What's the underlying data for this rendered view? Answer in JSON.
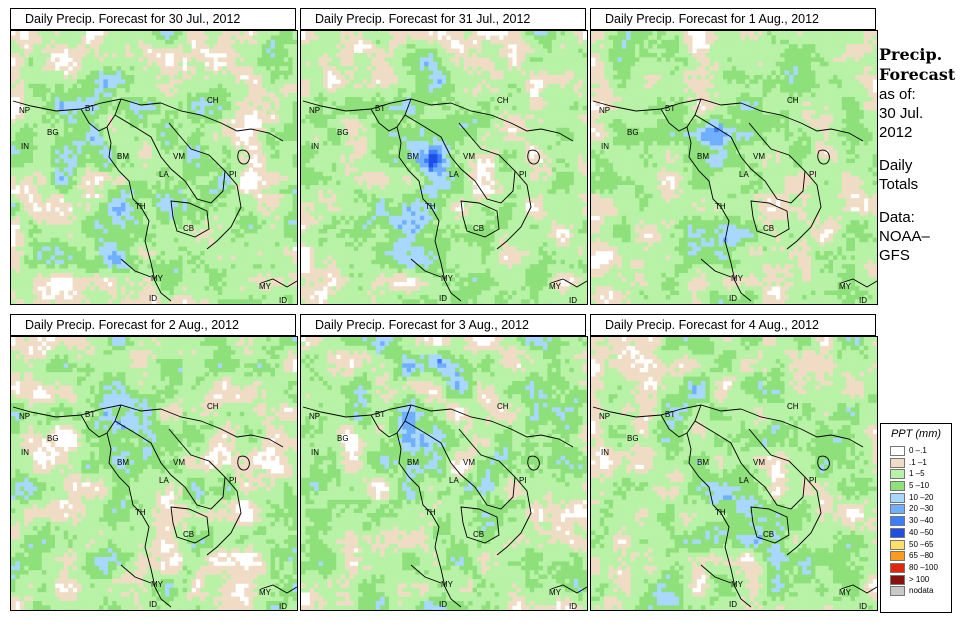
{
  "panels": [
    {
      "title": "Daily Precip. Forecast for  30 Jul., 2012",
      "seed": 11,
      "wet": 0.62
    },
    {
      "title": "Daily Precip. Forecast for  31 Jul., 2012",
      "seed": 27,
      "wet": 0.55
    },
    {
      "title": "Daily Precip. Forecast for  1 Aug., 2012",
      "seed": 43,
      "wet": 0.5
    },
    {
      "title": "Daily Precip. Forecast for  2 Aug., 2012",
      "seed": 59,
      "wet": 0.58
    },
    {
      "title": "Daily Precip. Forecast for  3 Aug., 2012",
      "seed": 71,
      "wet": 0.66
    },
    {
      "title": "Daily Precip. Forecast for  4 Aug., 2012",
      "seed": 97,
      "wet": 0.56
    }
  ],
  "map_labels": [
    "NP",
    "BT",
    "BG",
    "IN",
    "CH",
    "BM",
    "VM",
    "LA",
    "TH",
    "CB",
    "PI",
    "MY",
    "ID",
    "MY",
    "ID"
  ],
  "side_panel": {
    "title_line1": "Precip.",
    "title_line2": "Forecast",
    "asof_line1": "as of:",
    "asof_line2": "30 Jul.",
    "asof_line3": "2012",
    "totals_line1": "Daily",
    "totals_line2": "Totals",
    "source_line1": "Data:",
    "source_line2": "NOAA–",
    "source_line3": "GFS"
  },
  "legend": {
    "title": "PPT (mm)",
    "items": [
      {
        "label": "0 –.1",
        "color": "#ffffff"
      },
      {
        "label": ".1 –1",
        "color": "#f0dcc4"
      },
      {
        "label": "1 –5",
        "color": "#b8f2a6"
      },
      {
        "label": "5 –10",
        "color": "#8ee07a"
      },
      {
        "label": "10 –20",
        "color": "#a8d8ff"
      },
      {
        "label": "20 –30",
        "color": "#70aeff"
      },
      {
        "label": "30 –40",
        "color": "#3c7cff"
      },
      {
        "label": "40 –50",
        "color": "#1f4ee6"
      },
      {
        "label": "50 –65",
        "color": "#ffe066"
      },
      {
        "label": "65 –80",
        "color": "#ff9a1a"
      },
      {
        "label": "80 –100",
        "color": "#e0260c"
      },
      {
        "label": "> 100",
        "color": "#8a1010"
      },
      {
        "label": "nodata",
        "color": "#c8c8c8"
      }
    ]
  }
}
